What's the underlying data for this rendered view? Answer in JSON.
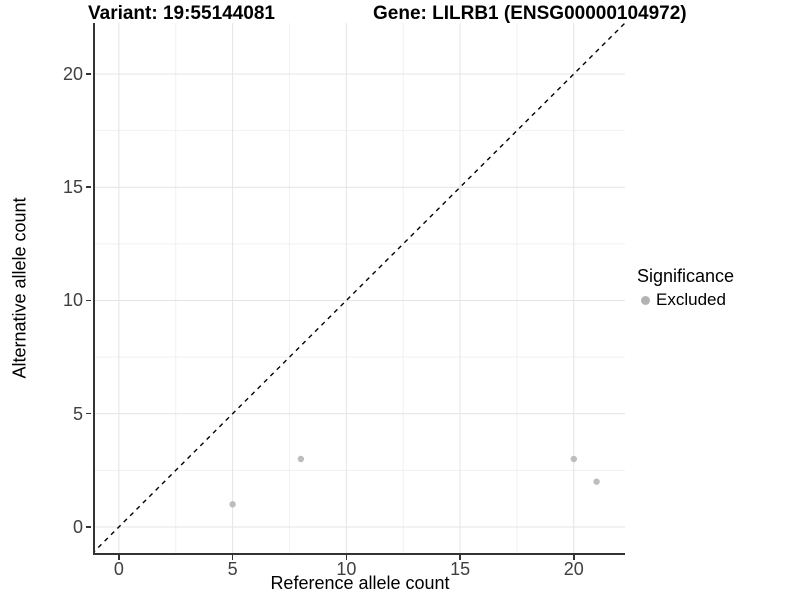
{
  "title": {
    "variant": "Variant: 19:55144081",
    "gene": "Gene: LILRB1 (ENSG00000104972)"
  },
  "chart_data": {
    "type": "scatter",
    "title": "Variant: 19:55144081  Gene: LILRB1 (ENSG00000104972)",
    "xlabel": "Reference allele count",
    "ylabel": "Alternative allele count",
    "xlim": [
      -1.05,
      22.25
    ],
    "ylim": [
      -1.15,
      22.25
    ],
    "xticks": [
      0,
      5,
      10,
      15,
      20
    ],
    "yticks": [
      0,
      5,
      10,
      15,
      20
    ],
    "minor_xticks": [
      2.5,
      7.5,
      12.5,
      17.5
    ],
    "minor_yticks": [
      2.5,
      7.5,
      12.5,
      17.5
    ],
    "grid": true,
    "series": [
      {
        "name": "Excluded",
        "color": "#bdbdbd",
        "point_radius": 3.2,
        "points": [
          [
            5,
            1
          ],
          [
            8,
            3
          ],
          [
            20,
            3
          ],
          [
            21,
            2
          ]
        ]
      }
    ],
    "reference_line": {
      "label": "identity",
      "slope": 1,
      "intercept": 0,
      "style": "dashed",
      "color": "#000000"
    },
    "legend": {
      "title": "Significance",
      "position": "right",
      "entries": [
        {
          "label": "Excluded",
          "color": "#b3b3b3"
        }
      ]
    },
    "colors": {
      "background": "#ffffff",
      "grid_major": "#e4e4e4",
      "grid_minor": "#f1f1f1",
      "axis_line": "#333333",
      "tick_text": "#404040",
      "point": "#bdbdbd"
    }
  }
}
